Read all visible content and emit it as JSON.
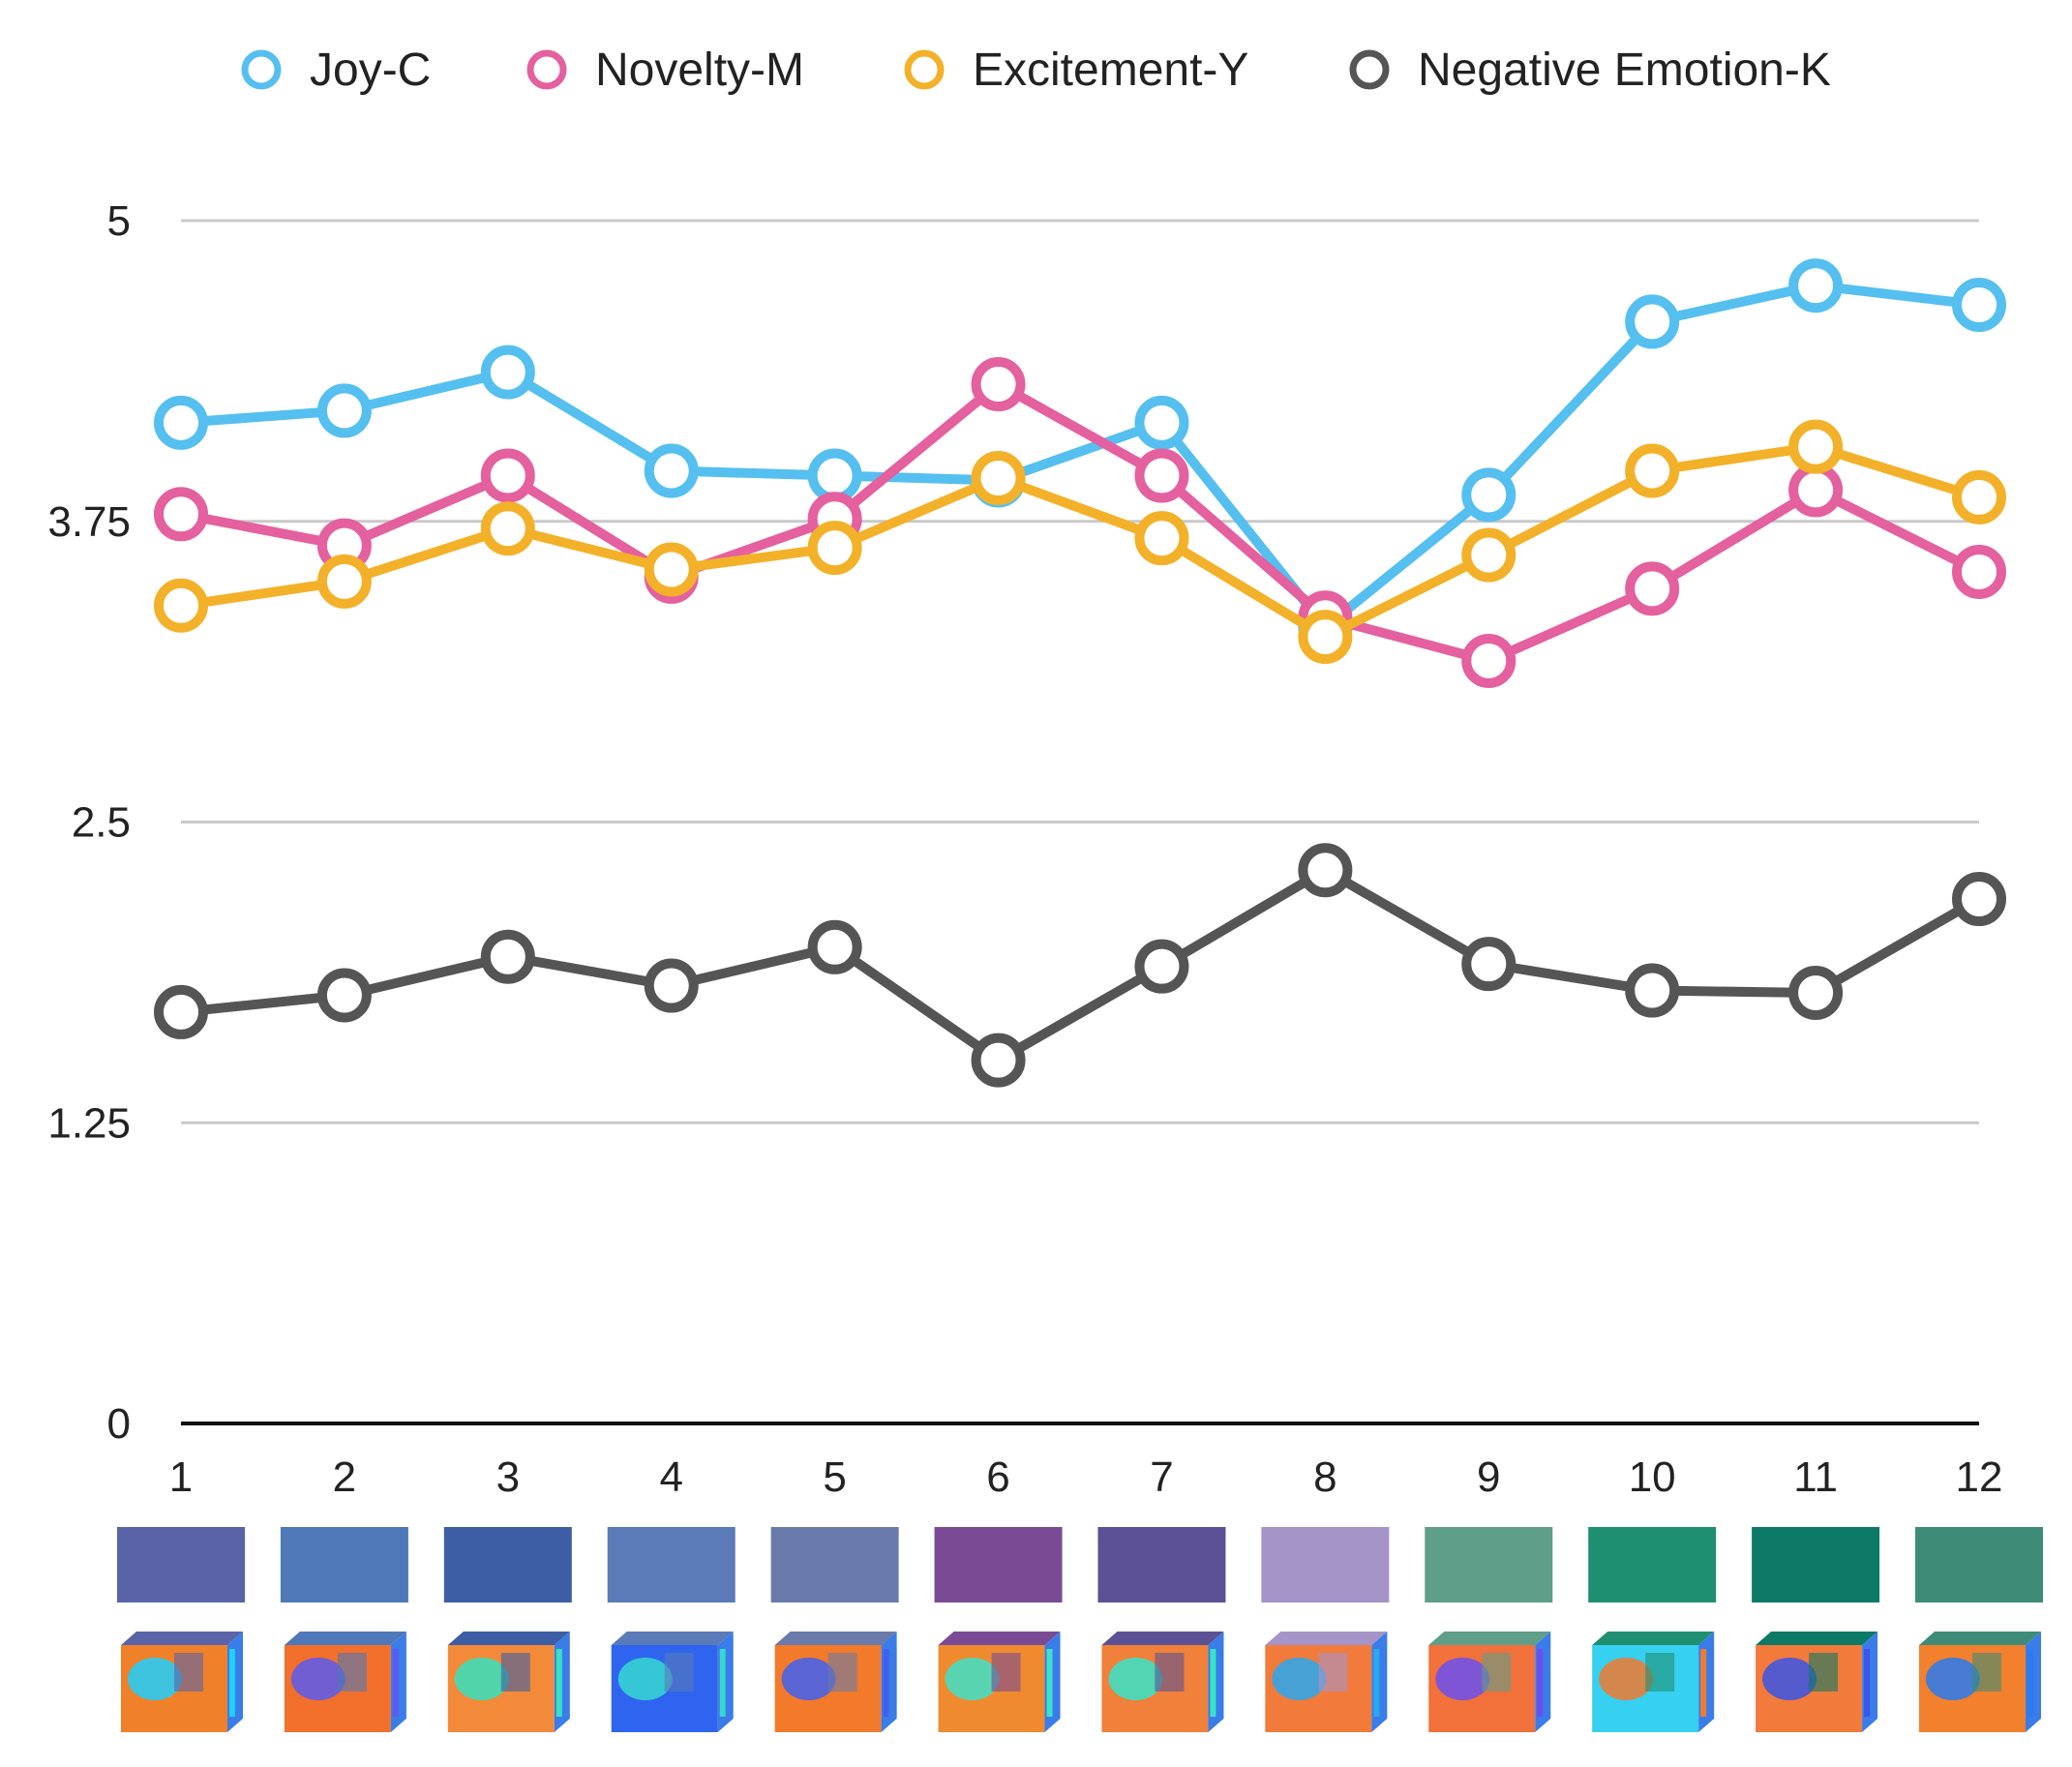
{
  "chart_data": {
    "type": "line",
    "title": "",
    "xlabel": "",
    "ylabel": "",
    "ylim": [
      0,
      5
    ],
    "yticks": [
      0,
      1.25,
      2.5,
      3.75,
      5
    ],
    "ytick_labels": [
      "0",
      "1.25",
      "2.5",
      "3.75",
      "5"
    ],
    "categories": [
      "1",
      "2",
      "3",
      "4",
      "5",
      "6",
      "7",
      "8",
      "9",
      "10",
      "11",
      "12"
    ],
    "grid": true,
    "legend_position": "top",
    "series": [
      {
        "name": "Joy-C",
        "color": "#55bff0",
        "values": [
          4.16,
          4.21,
          4.37,
          3.96,
          3.94,
          3.92,
          4.16,
          3.31,
          3.86,
          4.58,
          4.73,
          4.65
        ]
      },
      {
        "name": "Novelty-M",
        "color": "#e4609e",
        "values": [
          3.78,
          3.65,
          3.94,
          3.52,
          3.76,
          4.32,
          3.94,
          3.35,
          3.17,
          3.47,
          3.88,
          3.54
        ]
      },
      {
        "name": "Excitement-Y",
        "color": "#f3b12a",
        "values": [
          3.4,
          3.5,
          3.72,
          3.55,
          3.64,
          3.93,
          3.68,
          3.27,
          3.61,
          3.96,
          4.06,
          3.85
        ]
      },
      {
        "name": "Negative Emotion-K",
        "color": "#555555",
        "values": [
          1.71,
          1.78,
          1.94,
          1.82,
          1.98,
          1.51,
          1.9,
          2.3,
          1.91,
          1.8,
          1.79,
          2.18
        ]
      }
    ],
    "color_swatches": [
      "#5a63a8",
      "#4f78b8",
      "#3d5ea4",
      "#5a7ab8",
      "#6a7aaa",
      "#7a4a94",
      "#5c5194",
      "#a594c8",
      "#5f9e88",
      "#1f8f72",
      "#0c7a66",
      "#3e8c78"
    ],
    "cube_palettes": [
      {
        "top": "#5a63a8",
        "front": "#f0802a",
        "accent": "#1fd0ff"
      },
      {
        "top": "#4f78b8",
        "front": "#f26f2c",
        "accent": "#5a5cf0"
      },
      {
        "top": "#3d5ea4",
        "front": "#f28a3a",
        "accent": "#36e0c0"
      },
      {
        "top": "#5a7ab8",
        "front": "#2f64f0",
        "accent": "#36d8d0"
      },
      {
        "top": "#6a7aaa",
        "front": "#f27a2a",
        "accent": "#4060f0"
      },
      {
        "top": "#7a4a94",
        "front": "#f08a2e",
        "accent": "#3ee0c8"
      },
      {
        "top": "#5c5194",
        "front": "#f0803a",
        "accent": "#36e4c8"
      },
      {
        "top": "#a594c8",
        "front": "#f27a3a",
        "accent": "#2aa8f0"
      },
      {
        "top": "#5f9e88",
        "front": "#f2703a",
        "accent": "#6a50f0"
      },
      {
        "top": "#1f8f72",
        "front": "#36d0f0",
        "accent": "#f07a30"
      },
      {
        "top": "#0c7a66",
        "front": "#f27a3a",
        "accent": "#3a56e8"
      },
      {
        "top": "#3e8c78",
        "front": "#f2802c",
        "accent": "#2a7af0"
      }
    ]
  }
}
